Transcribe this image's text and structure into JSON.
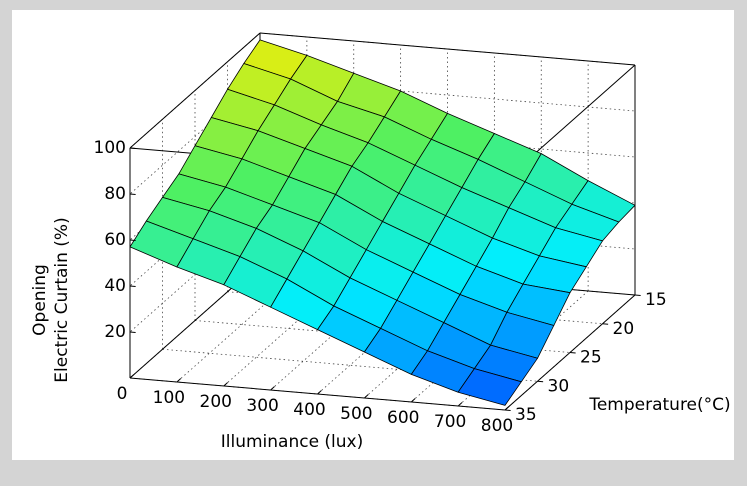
{
  "chart_data": {
    "type": "surface",
    "xlabel": "Illuminance (lux)",
    "ylabel": "Temperature(°C)",
    "zlabel": [
      "Opening",
      "Electric Curtain (%)"
    ],
    "x": [
      0,
      100,
      200,
      300,
      400,
      500,
      600,
      700,
      800
    ],
    "y": [
      15,
      17.5,
      20,
      22.5,
      25,
      27.5,
      30,
      32.5,
      35
    ],
    "z": [
      [
        97,
        92,
        86,
        80,
        72,
        65,
        58,
        48,
        39
      ],
      [
        93,
        88,
        80,
        75,
        67,
        60,
        52,
        44,
        38
      ],
      [
        88,
        83,
        76,
        70,
        62,
        54,
        47,
        40,
        36
      ],
      [
        82,
        78,
        72,
        66,
        56,
        48,
        40,
        34,
        31
      ],
      [
        76,
        72,
        66,
        60,
        50,
        42,
        34,
        28,
        26
      ],
      [
        70,
        66,
        60,
        54,
        44,
        36,
        28,
        22,
        18
      ],
      [
        66,
        62,
        56,
        48,
        38,
        30,
        22,
        14,
        10
      ],
      [
        62,
        56,
        50,
        42,
        32,
        24,
        16,
        10,
        6
      ],
      [
        57,
        50,
        44,
        36,
        28,
        20,
        12,
        6,
        2
      ]
    ],
    "xlim": [
      0,
      800
    ],
    "ylim": [
      15,
      35
    ],
    "zlim": [
      0,
      100
    ],
    "xticks": [
      0,
      100,
      200,
      300,
      400,
      500,
      600,
      700,
      800
    ],
    "yticks": [
      15,
      20,
      25,
      30,
      35
    ],
    "zticks": [
      20,
      40,
      60,
      80,
      100
    ],
    "colormap": [
      "#0050ff",
      "#00eeff",
      "#50f060",
      "#ffee00"
    ],
    "grid": true
  }
}
